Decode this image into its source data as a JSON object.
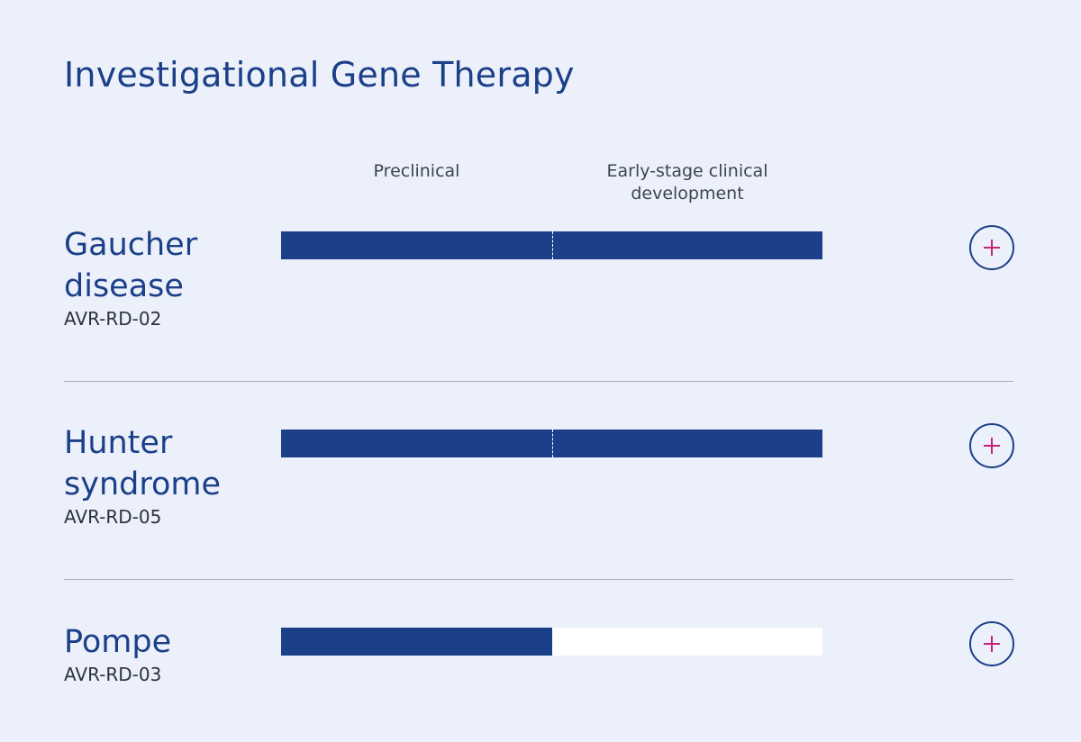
{
  "page": {
    "title": "Investigational Gene Therapy"
  },
  "phases": [
    {
      "label": "Preclinical"
    },
    {
      "label": "Early-stage clinical development"
    }
  ],
  "colors": {
    "background": "#ECF0FA",
    "brand_blue": "#1B3F88",
    "accent_magenta": "#C8237A",
    "track_empty": "#FFFFFF",
    "divider": "#A9AFBD"
  },
  "programs": [
    {
      "name": "Gaucher disease",
      "code": "AVR-RD-02",
      "progress_fraction": 1.0,
      "expand_icon": "plus-icon"
    },
    {
      "name": "Hunter syndrome",
      "code": "AVR-RD-05",
      "progress_fraction": 1.0,
      "expand_icon": "plus-icon"
    },
    {
      "name": "Pompe",
      "code": "AVR-RD-03",
      "progress_fraction": 0.5,
      "expand_icon": "plus-icon"
    }
  ]
}
